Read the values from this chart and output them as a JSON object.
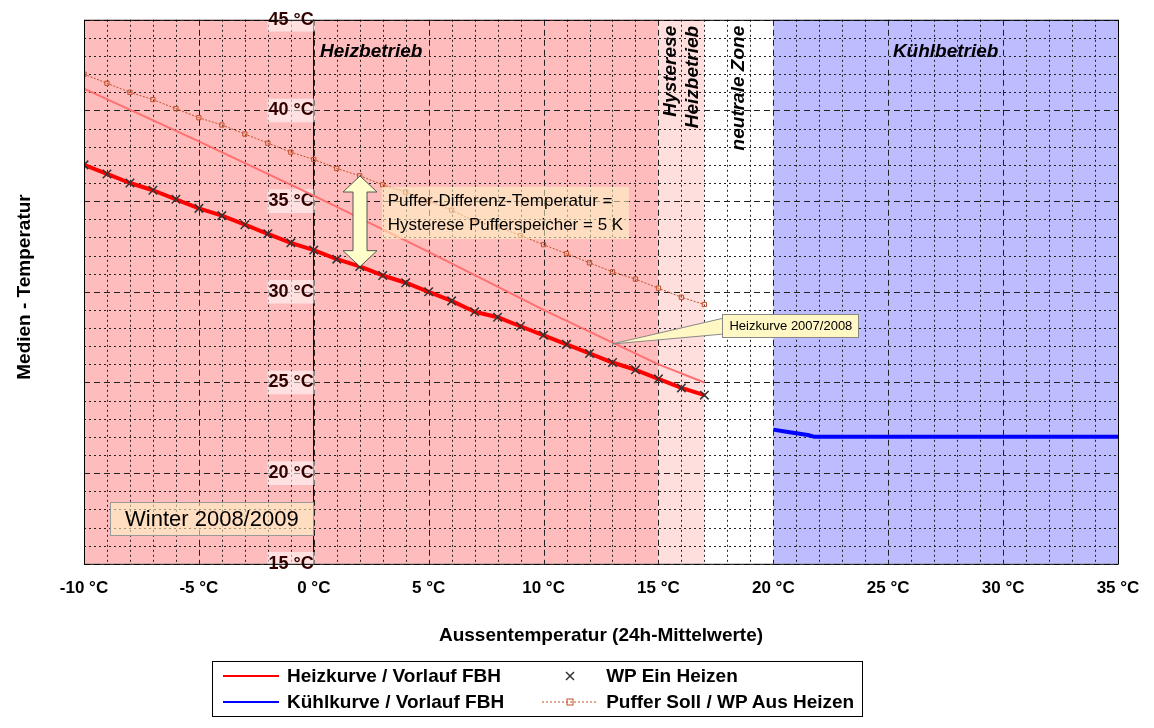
{
  "chart_data": {
    "type": "line",
    "xlabel": "Aussentemperatur (24h-Mittelwerte)",
    "ylabel": "Medien - Temperatur",
    "xlim": [
      -10,
      35
    ],
    "ylim": [
      15,
      45
    ],
    "xticks": [
      {
        "value": -10,
        "label": "-10 °C"
      },
      {
        "value": -9,
        "label": null
      },
      {
        "value": -8,
        "label": null
      },
      {
        "value": -7,
        "label": null
      },
      {
        "value": -6,
        "label": null
      },
      {
        "value": -5,
        "label": "-5 °C"
      },
      {
        "value": -4,
        "label": null
      },
      {
        "value": -3,
        "label": null
      },
      {
        "value": -2,
        "label": null
      },
      {
        "value": -1,
        "label": null
      },
      {
        "value": 0,
        "label": "0 °C"
      },
      {
        "value": 1,
        "label": null
      },
      {
        "value": 2,
        "label": null
      },
      {
        "value": 3,
        "label": null
      },
      {
        "value": 4,
        "label": null
      },
      {
        "value": 5,
        "label": "5 °C"
      },
      {
        "value": 6,
        "label": null
      },
      {
        "value": 7,
        "label": null
      },
      {
        "value": 8,
        "label": null
      },
      {
        "value": 9,
        "label": null
      },
      {
        "value": 10,
        "label": "10 °C"
      },
      {
        "value": 11,
        "label": null
      },
      {
        "value": 12,
        "label": null
      },
      {
        "value": 13,
        "label": null
      },
      {
        "value": 14,
        "label": null
      },
      {
        "value": 15,
        "label": "15 °C"
      },
      {
        "value": 16,
        "label": null
      },
      {
        "value": 17,
        "label": null
      },
      {
        "value": 18,
        "label": null
      },
      {
        "value": 19,
        "label": null
      },
      {
        "value": 20,
        "label": "20 °C"
      },
      {
        "value": 21,
        "label": null
      },
      {
        "value": 22,
        "label": null
      },
      {
        "value": 23,
        "label": null
      },
      {
        "value": 24,
        "label": null
      },
      {
        "value": 25,
        "label": "25 °C"
      },
      {
        "value": 26,
        "label": null
      },
      {
        "value": 27,
        "label": null
      },
      {
        "value": 28,
        "label": null
      },
      {
        "value": 29,
        "label": null
      },
      {
        "value": 30,
        "label": "30 °C"
      },
      {
        "value": 31,
        "label": null
      },
      {
        "value": 32,
        "label": null
      },
      {
        "value": 33,
        "label": null
      },
      {
        "value": 34,
        "label": null
      },
      {
        "value": 35,
        "label": "35 °C"
      }
    ],
    "yticks": [
      {
        "value": 15,
        "label": "15 °C"
      },
      {
        "value": 16,
        "label": null
      },
      {
        "value": 17,
        "label": null
      },
      {
        "value": 18,
        "label": null
      },
      {
        "value": 19,
        "label": null
      },
      {
        "value": 20,
        "label": "20 °C"
      },
      {
        "value": 21,
        "label": null
      },
      {
        "value": 22,
        "label": null
      },
      {
        "value": 23,
        "label": null
      },
      {
        "value": 24,
        "label": null
      },
      {
        "value": 25,
        "label": "25 °C"
      },
      {
        "value": 26,
        "label": null
      },
      {
        "value": 27,
        "label": null
      },
      {
        "value": 28,
        "label": null
      },
      {
        "value": 29,
        "label": null
      },
      {
        "value": 30,
        "label": "30 °C"
      },
      {
        "value": 31,
        "label": null
      },
      {
        "value": 32,
        "label": null
      },
      {
        "value": 33,
        "label": null
      },
      {
        "value": 34,
        "label": null
      },
      {
        "value": 35,
        "label": "35 °C"
      },
      {
        "value": 36,
        "label": null
      },
      {
        "value": 37,
        "label": null
      },
      {
        "value": 38,
        "label": null
      },
      {
        "value": 39,
        "label": null
      },
      {
        "value": 40,
        "label": "40 °C"
      },
      {
        "value": 41,
        "label": null
      },
      {
        "value": 42,
        "label": null
      },
      {
        "value": 43,
        "label": null
      },
      {
        "value": 44,
        "label": null
      },
      {
        "value": 45,
        "label": "45 °C"
      }
    ],
    "grid": true,
    "legend": "bottom",
    "series": [
      {
        "name": "Heizkurve / Vorlauf FBH",
        "type": "line",
        "color": "#ff0000",
        "marker": "none",
        "x": [
          -10,
          -9,
          -8,
          -7,
          -6,
          -5,
          -4,
          -3,
          -2,
          -1,
          0,
          1,
          2,
          3,
          4,
          5,
          6,
          7,
          8,
          9,
          10,
          11,
          12,
          13,
          14,
          15,
          16,
          17
        ],
        "values": [
          37.0,
          36.5,
          36.0,
          35.6,
          35.1,
          34.6,
          34.2,
          33.7,
          33.2,
          32.7,
          32.3,
          31.8,
          31.4,
          30.9,
          30.5,
          30.0,
          29.5,
          28.9,
          28.6,
          28.1,
          27.6,
          27.1,
          26.6,
          26.1,
          25.7,
          25.2,
          24.7,
          24.3
        ]
      },
      {
        "name": "Kühlkurve / Vorlauf FBH",
        "type": "line",
        "color": "#0000ff",
        "marker": "none",
        "x": [
          20,
          20.5,
          21,
          21.5,
          21.8,
          35
        ],
        "values": [
          22.4,
          22.3,
          22.2,
          22.1,
          22.0,
          22.0
        ]
      },
      {
        "name": "WP Ein Heizen",
        "type": "scatter",
        "color": "#333333",
        "marker": "cross",
        "x": [
          -10,
          -9,
          -8,
          -7,
          -6,
          -5,
          -4,
          -3,
          -2,
          -1,
          0,
          1,
          2,
          3,
          4,
          5,
          6,
          7,
          8,
          9,
          10,
          11,
          12,
          13,
          14,
          15,
          16,
          17
        ],
        "values": [
          37.0,
          36.5,
          36.0,
          35.6,
          35.1,
          34.6,
          34.2,
          33.7,
          33.2,
          32.7,
          32.3,
          31.8,
          31.4,
          30.9,
          30.5,
          30.0,
          29.5,
          28.9,
          28.6,
          28.1,
          27.6,
          27.1,
          26.6,
          26.1,
          25.7,
          25.2,
          24.7,
          24.3
        ]
      },
      {
        "name": "Puffer Soll / WP Aus Heizen",
        "type": "line",
        "color": "#c0502a",
        "marker": "square",
        "line_style": "dotted",
        "x": [
          -10,
          -9,
          -8,
          -7,
          -6,
          -5,
          -4,
          -3,
          -2,
          -1,
          0,
          1,
          2,
          3,
          4,
          5,
          6,
          7,
          8,
          9,
          10,
          11,
          12,
          13,
          14,
          15,
          16,
          17
        ],
        "values": [
          42.0,
          41.5,
          41.0,
          40.6,
          40.1,
          39.6,
          39.2,
          38.7,
          38.2,
          37.7,
          37.3,
          36.8,
          36.4,
          35.9,
          35.5,
          35.0,
          34.5,
          33.9,
          33.6,
          33.1,
          32.6,
          32.1,
          31.6,
          31.1,
          30.7,
          30.2,
          29.7,
          29.3
        ]
      },
      {
        "type": "line",
        "color": "#ff7070",
        "marker": "none",
        "x": [
          -10,
          -5,
          0,
          5,
          10,
          15,
          17
        ],
        "values": [
          41.2,
          38.3,
          35.3,
          32.2,
          29.0,
          26.0,
          25.0
        ]
      }
    ],
    "bands": [
      {
        "axis": "x",
        "from": -10,
        "to": 15,
        "label": "Heizbetrieb",
        "color": "#ffbcbc"
      },
      {
        "axis": "x",
        "from": 15,
        "to": 17,
        "label": "Hysterese\nHeizbetrieb",
        "color": "#ffdede"
      },
      {
        "axis": "x",
        "from": 17,
        "to": 20,
        "label": "neutrale Zone",
        "color": "#ffffff"
      },
      {
        "axis": "x",
        "from": 20,
        "to": 35,
        "label": "Kühlbetrieb",
        "color": "#bcbcff"
      }
    ],
    "annotations": [
      {
        "text": "Puffer-Differenz-Temperatur =\nHysterese Pufferspeicher = 5 K",
        "x": 2,
        "y": 33.9
      },
      {
        "text": "Heizkurve 2007/2008",
        "x": 13,
        "y": 27.1
      },
      "Winter 2008/2009"
    ]
  }
}
